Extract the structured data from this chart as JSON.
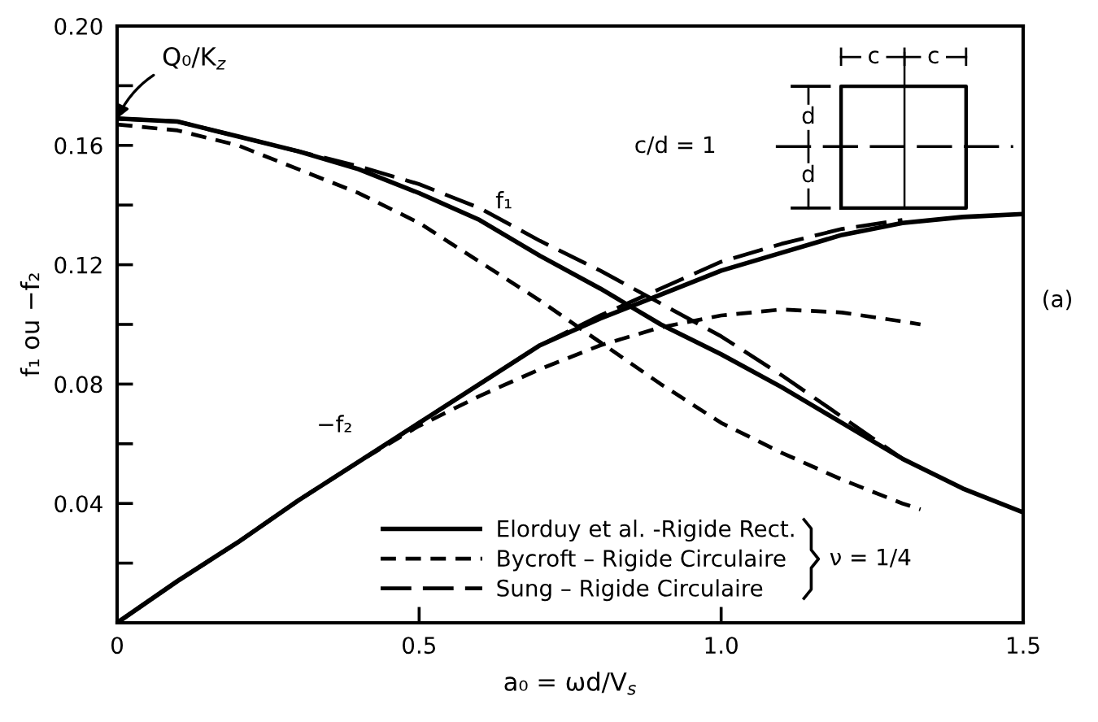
{
  "chart_data": {
    "type": "line",
    "xlabel": "a₀ = ωd/V$_{s}$",
    "ylabel": "f₁ ou −f₂",
    "xlim": [
      0,
      1.5
    ],
    "ylim": [
      0,
      0.2
    ],
    "xticks": [
      0,
      0.5,
      {
        "value": 1.0,
        "label": "1.0"
      },
      1.5
    ],
    "yticks": [
      {
        "value": 0.02,
        "label": null
      },
      0.04,
      {
        "value": 0.06,
        "label": null
      },
      0.08,
      {
        "value": 0.1,
        "label": null
      },
      0.12,
      {
        "value": 0.14,
        "label": null
      },
      0.16,
      {
        "value": 0.18,
        "label": null
      },
      {
        "value": 0.2,
        "label": "0.20"
      }
    ],
    "legend": "bottom",
    "annotations": [
      {
        "text": "Q₀/K$_{z}$",
        "x": 0,
        "y": 0.169
      },
      "f₁",
      "−f₂",
      "c/d = 1",
      "c",
      "c",
      "d",
      "d",
      "ν = 1/4",
      "(a)"
    ],
    "series": [
      {
        "name": "Elorduy et al. -Rigide Rect.",
        "color": "#000000",
        "line_style": "solid",
        "x": [
          0,
          0.1,
          0.2,
          0.3,
          0.4,
          0.5,
          0.6,
          0.7,
          0.8,
          0.9,
          1.0,
          1.1,
          1.2,
          1.3,
          1.4,
          1.5
        ],
        "values": [
          0.169,
          0.168,
          0.163,
          0.158,
          0.152,
          0.144,
          0.135,
          0.123,
          0.112,
          0.1,
          0.09,
          0.079,
          0.067,
          0.055,
          0.045,
          0.037
        ]
      },
      {
        "color": "#000000",
        "line_style": "solid",
        "x": [
          0,
          0.1,
          0.2,
          0.3,
          0.4,
          0.5,
          0.6,
          0.7,
          0.8,
          0.9,
          1.0,
          1.1,
          1.2,
          1.3,
          1.4,
          1.5
        ],
        "values": [
          0,
          0.014,
          0.027,
          0.041,
          0.054,
          0.067,
          0.08,
          0.093,
          0.102,
          0.11,
          0.118,
          0.124,
          0.13,
          0.134,
          0.136,
          0.137
        ]
      },
      {
        "name": "Bycroft – Rigide Circulaire",
        "color": "#000000",
        "line_style": "dashed",
        "x": [
          0,
          0.1,
          0.2,
          0.3,
          0.4,
          0.5,
          0.6,
          0.7,
          0.8,
          0.9,
          1.0,
          1.1,
          1.2,
          1.3,
          1.33
        ],
        "values": [
          0.167,
          0.165,
          0.16,
          0.152,
          0.144,
          0.134,
          0.121,
          0.108,
          0.094,
          0.08,
          0.067,
          0.057,
          0.048,
          0.04,
          0.038
        ]
      },
      {
        "color": "#000000",
        "line_style": "dashed",
        "x": [
          0,
          0.1,
          0.2,
          0.3,
          0.4,
          0.5,
          0.6,
          0.7,
          0.8,
          0.9,
          1.0,
          1.1,
          1.2,
          1.3,
          1.33
        ],
        "values": [
          0,
          0.014,
          0.027,
          0.041,
          0.054,
          0.066,
          0.076,
          0.085,
          0.093,
          0.099,
          0.103,
          0.105,
          0.104,
          0.101,
          0.1
        ]
      },
      {
        "name": "Sung – Rigide Circulaire",
        "color": "#000000",
        "line_style": "long_dashed",
        "x": [
          0,
          0.1,
          0.2,
          0.3,
          0.4,
          0.5,
          0.6,
          0.7,
          0.8,
          0.9,
          1.0,
          1.1,
          1.2,
          1.3,
          1.33
        ],
        "values": [
          0.169,
          0.168,
          0.163,
          0.158,
          0.153,
          0.147,
          0.139,
          0.128,
          0.118,
          0.107,
          0.096,
          0.083,
          0.069,
          0.055,
          0.052
        ]
      },
      {
        "color": "#000000",
        "line_style": "long_dashed",
        "x": [
          0,
          0.1,
          0.2,
          0.3,
          0.4,
          0.5,
          0.6,
          0.7,
          0.8,
          0.9,
          1.0,
          1.1,
          1.2,
          1.3
        ],
        "values": [
          0,
          0.014,
          0.027,
          0.041,
          0.054,
          0.067,
          0.08,
          0.093,
          0.103,
          0.112,
          0.121,
          0.127,
          0.132,
          0.135
        ]
      }
    ]
  }
}
